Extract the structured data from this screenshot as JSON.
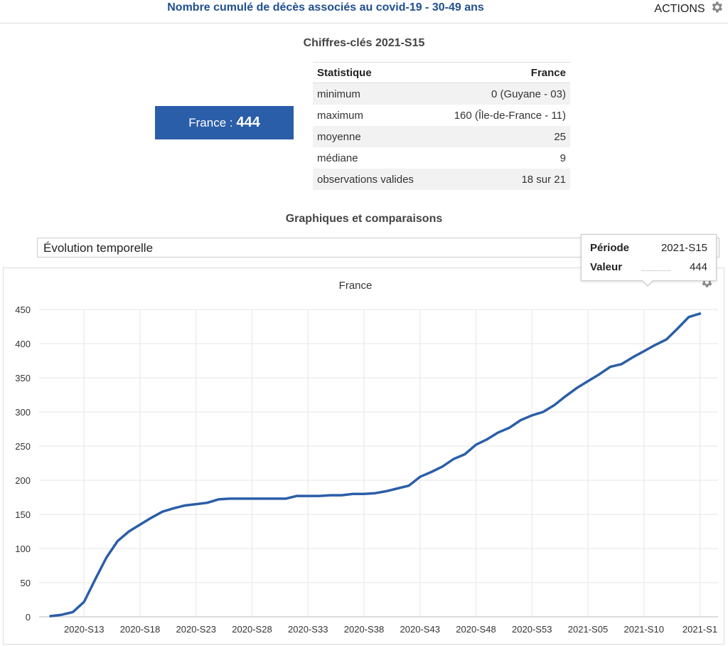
{
  "header": {
    "title": "Nombre cumulé de décès associés au covid-19 - 30-49 ans",
    "actions_label": "ACTIONS",
    "actions_icon": "gear-icon"
  },
  "key_figures": {
    "title": "Chiffres-clés 2021-S15",
    "france_label": "France : ",
    "france_value": "444",
    "table": {
      "headers": [
        "Statistique",
        "France"
      ],
      "rows": [
        [
          "minimum",
          "0 (Guyane - 03)"
        ],
        [
          "maximum",
          "160 (Île-de-France - 11)"
        ],
        [
          "moyenne",
          "25"
        ],
        [
          "médiane",
          "9"
        ],
        [
          "observations valides",
          "18 sur 21"
        ]
      ]
    }
  },
  "comparisons": {
    "title": "Graphiques et comparaisons",
    "selected_view": "Évolution temporelle"
  },
  "tooltip": {
    "period_label": "Période",
    "period_value": "2021-S15",
    "value_label": "Valeur",
    "value_value": "444"
  },
  "colors": {
    "accent": "#2b5ea8",
    "title": "#1f4f8f",
    "line": "#2b5ea8"
  },
  "chart_data": {
    "type": "line",
    "title": "France",
    "xlabel": "",
    "ylabel": "",
    "ylim": [
      0,
      450
    ],
    "yticks": [
      0,
      50,
      100,
      150,
      200,
      250,
      300,
      350,
      400,
      450
    ],
    "xtick_labels": [
      "2020-S13",
      "2020-S18",
      "2020-S23",
      "2020-S28",
      "2020-S33",
      "2020-S38",
      "2020-S43",
      "2020-S48",
      "2020-S53",
      "2021-S05",
      "2021-S10",
      "2021-S1"
    ],
    "grid": true,
    "x": [
      "2020-S10",
      "2020-S11",
      "2020-S12",
      "2020-S13",
      "2020-S14",
      "2020-S15",
      "2020-S16",
      "2020-S17",
      "2020-S18",
      "2020-S19",
      "2020-S20",
      "2020-S21",
      "2020-S22",
      "2020-S23",
      "2020-S24",
      "2020-S25",
      "2020-S26",
      "2020-S27",
      "2020-S28",
      "2020-S29",
      "2020-S30",
      "2020-S31",
      "2020-S32",
      "2020-S33",
      "2020-S34",
      "2020-S35",
      "2020-S36",
      "2020-S37",
      "2020-S38",
      "2020-S39",
      "2020-S40",
      "2020-S41",
      "2020-S42",
      "2020-S43",
      "2020-S44",
      "2020-S45",
      "2020-S46",
      "2020-S47",
      "2020-S48",
      "2020-S49",
      "2020-S50",
      "2020-S51",
      "2020-S52",
      "2020-S53",
      "2021-S01",
      "2021-S02",
      "2021-S03",
      "2021-S04",
      "2021-S05",
      "2021-S06",
      "2021-S07",
      "2021-S08",
      "2021-S09",
      "2021-S10",
      "2021-S11",
      "2021-S12",
      "2021-S13",
      "2021-S14",
      "2021-S15"
    ],
    "series": [
      {
        "values": [
          1,
          3,
          7,
          22,
          55,
          87,
          111,
          125,
          135,
          145,
          154,
          159,
          163,
          165,
          167,
          172,
          173,
          173,
          173,
          173,
          173,
          173,
          177,
          177,
          177,
          178,
          178,
          180,
          180,
          181,
          184,
          188,
          192,
          205,
          212,
          220,
          231,
          238,
          252,
          260,
          270,
          277,
          288,
          295,
          300,
          310,
          323,
          335,
          345,
          355,
          366,
          370,
          380,
          389,
          398,
          406,
          422,
          439,
          444
        ]
      }
    ]
  }
}
